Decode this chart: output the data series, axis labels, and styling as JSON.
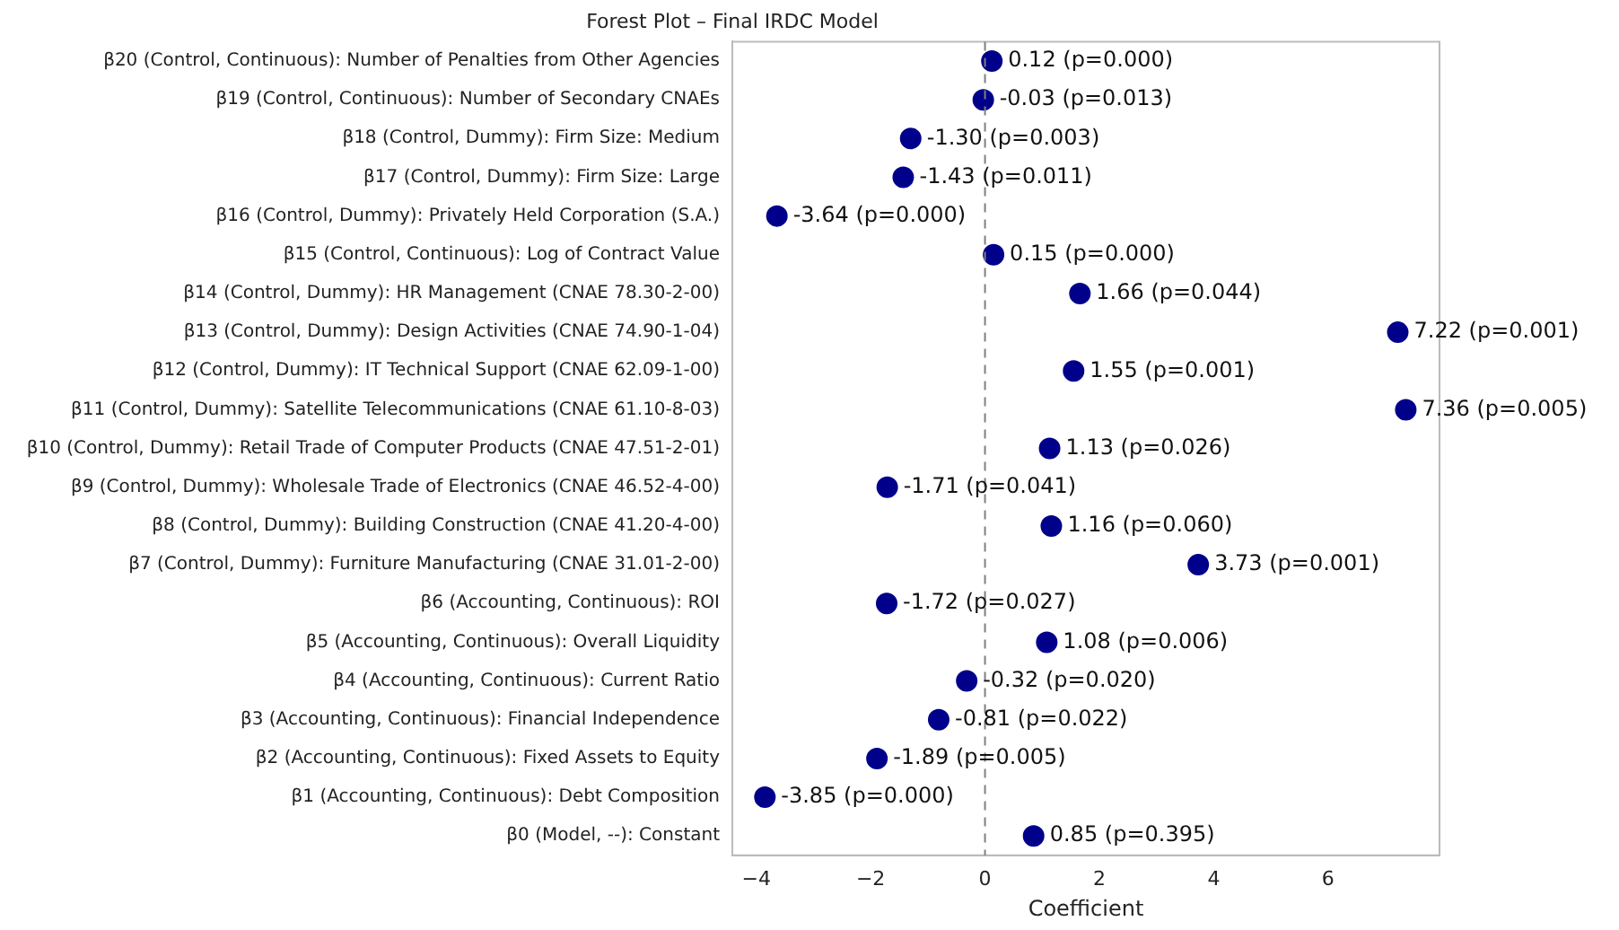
{
  "chart_data": {
    "type": "scatter",
    "orientation": "horizontal",
    "title": "Forest Plot – Final IRDC Model",
    "xlabel": "Coefficient",
    "categories": [
      "β20 (Control, Continuous): Number of Penalties from Other Agencies",
      "β19 (Control, Continuous): Number of Secondary CNAEs",
      "β18 (Control, Dummy): Firm Size: Medium",
      "β17 (Control, Dummy): Firm Size: Large",
      "β16 (Control, Dummy): Privately Held Corporation (S.A.)",
      "β15 (Control, Continuous): Log of Contract Value",
      "β14 (Control, Dummy): HR Management (CNAE 78.30-2-00)",
      "β13 (Control, Dummy): Design Activities (CNAE 74.90-1-04)",
      "β12 (Control, Dummy): IT Technical Support (CNAE 62.09-1-00)",
      "β11 (Control, Dummy): Satellite Telecommunications (CNAE 61.10-8-03)",
      "β10 (Control, Dummy): Retail Trade of Computer Products (CNAE 47.51-2-01)",
      "β9 (Control, Dummy): Wholesale Trade of Electronics (CNAE 46.52-4-00)",
      "β8 (Control, Dummy): Building Construction (CNAE 41.20-4-00)",
      "β7 (Control, Dummy): Furniture Manufacturing (CNAE 31.01-2-00)",
      "β6 (Accounting, Continuous): ROI",
      "β5 (Accounting, Continuous): Overall Liquidity",
      "β4 (Accounting, Continuous): Current Ratio",
      "β3 (Accounting, Continuous): Financial Independence",
      "β2 (Accounting, Continuous): Fixed Assets to Equity",
      "β1 (Accounting, Continuous): Debt Composition",
      "β0 (Model, --): Constant"
    ],
    "values": [
      0.12,
      -0.03,
      -1.3,
      -1.43,
      -3.64,
      0.15,
      1.66,
      7.22,
      1.55,
      7.36,
      1.13,
      -1.71,
      1.16,
      3.73,
      -1.72,
      1.08,
      -0.32,
      -0.81,
      -1.89,
      -3.85,
      0.85
    ],
    "value_labels": [
      "0.12 (p=0.000)",
      "-0.03 (p=0.013)",
      "-1.30 (p=0.003)",
      "-1.43 (p=0.011)",
      "-3.64 (p=0.000)",
      "0.15 (p=0.000)",
      "1.66 (p=0.044)",
      "7.22 (p=0.001)",
      "1.55 (p=0.001)",
      "7.36 (p=0.005)",
      "1.13 (p=0.026)",
      "-1.71 (p=0.041)",
      "1.16 (p=0.060)",
      "3.73 (p=0.001)",
      "-1.72 (p=0.027)",
      "1.08 (p=0.006)",
      "-0.32 (p=0.020)",
      "-0.81 (p=0.022)",
      "-1.89 (p=0.005)",
      "-3.85 (p=0.000)",
      "0.85 (p=0.395)"
    ],
    "color": "#00008b",
    "marker": "circle",
    "xlim": [
      -4.42,
      7.95
    ],
    "xticks": [
      {
        "value": -4,
        "label": "−4"
      },
      {
        "value": -2,
        "label": "−2"
      },
      0,
      2,
      4,
      6
    ],
    "ref_lines": [
      {
        "axis": "x",
        "value": 0,
        "color": "#808080",
        "line_style": "dashed"
      }
    ],
    "grid": false,
    "legend": false
  }
}
